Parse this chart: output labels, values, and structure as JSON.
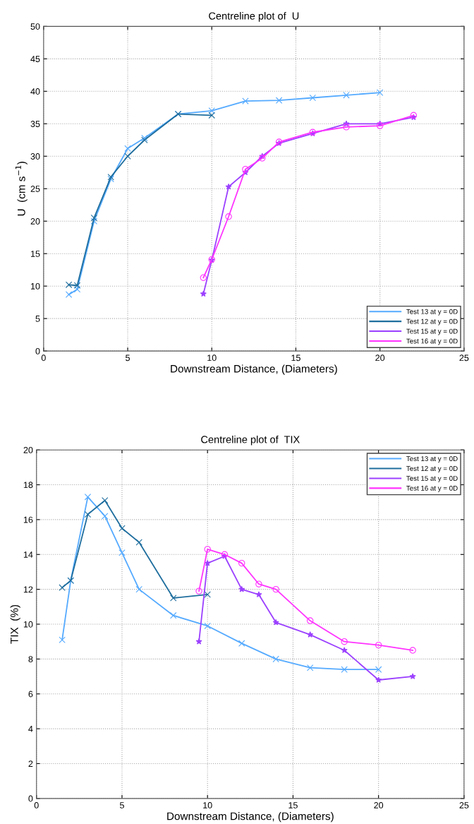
{
  "chart_data": [
    {
      "type": "line",
      "title": "Centreline plot of  U",
      "xlabel": "Downstream Distance, (Diameters)",
      "ylabel": "U  (cm s$^{−1}$)",
      "xlim": [
        0,
        25
      ],
      "xticks": [
        0,
        5,
        10,
        15,
        20,
        25
      ],
      "ylim": [
        0,
        50
      ],
      "yticks": [
        0,
        5,
        10,
        15,
        20,
        25,
        30,
        35,
        40,
        45,
        50
      ],
      "grid": true,
      "legend": "bottom right",
      "line_style": "solid",
      "series": [
        {
          "name": "Test 13 at y = 0D",
          "color": "#55aaff",
          "marker": "cross",
          "x": [
            1.5,
            2,
            3,
            4,
            5,
            6,
            8,
            10,
            12,
            14,
            16,
            18,
            20
          ],
          "values": [
            8.7,
            9.5,
            20,
            26.5,
            31.2,
            32.8,
            36.5,
            37,
            38.5,
            38.6,
            39,
            39.4,
            39.8
          ]
        },
        {
          "name": "Test 12 at y = 0D",
          "color": "#1f6e9e",
          "marker": "cross",
          "x": [
            1.5,
            2,
            3,
            4,
            5,
            6,
            8,
            10
          ],
          "values": [
            10.2,
            10.1,
            20.5,
            26.8,
            30,
            32.5,
            36.5,
            36.3
          ]
        },
        {
          "name": "Test 15 at y = 0D",
          "color": "#9b40ff",
          "marker": "star",
          "x": [
            9.5,
            10,
            11,
            12,
            13,
            14,
            16,
            18,
            20,
            22
          ],
          "values": [
            8.8,
            14,
            25.3,
            27.5,
            30,
            32,
            33.5,
            35,
            35,
            36
          ]
        },
        {
          "name": "Test 16 at y = 0D",
          "color": "#ff33ff",
          "marker": "circle",
          "x": [
            9.5,
            10,
            11,
            12,
            13,
            14,
            16,
            18,
            20,
            22
          ],
          "values": [
            11.3,
            14.1,
            20.7,
            28,
            29.7,
            32.2,
            33.7,
            34.5,
            34.7,
            36.3
          ]
        }
      ]
    },
    {
      "type": "line",
      "title": "Centreline plot of  TIX",
      "xlabel": "Downstream Distance, (Diameters)",
      "ylabel": "TIX  (%)",
      "xlim": [
        0,
        25
      ],
      "xticks": [
        0,
        5,
        10,
        15,
        20,
        25
      ],
      "ylim": [
        0,
        20
      ],
      "yticks": [
        0,
        2,
        4,
        6,
        8,
        10,
        12,
        14,
        16,
        18,
        20
      ],
      "grid": true,
      "legend": "top right",
      "line_style": "solid",
      "series": [
        {
          "name": "Test 13 at y = 0D",
          "color": "#55aaff",
          "marker": "cross",
          "x": [
            1.5,
            2,
            3,
            4,
            5,
            6,
            8,
            10,
            12,
            14,
            16,
            18,
            20
          ],
          "values": [
            9.1,
            12.5,
            17.3,
            16.2,
            14.1,
            12,
            10.5,
            9.9,
            8.9,
            8,
            7.5,
            7.4,
            7.4
          ]
        },
        {
          "name": "Test 12 at y = 0D",
          "color": "#1f6e9e",
          "marker": "cross",
          "x": [
            1.5,
            2,
            3,
            4,
            5,
            6,
            8,
            10
          ],
          "values": [
            12.1,
            12.5,
            16.3,
            17.1,
            15.5,
            14.7,
            11.5,
            11.7
          ]
        },
        {
          "name": "Test 15 at y = 0D",
          "color": "#9b40ff",
          "marker": "star",
          "x": [
            9.5,
            10,
            11,
            12,
            13,
            14,
            16,
            18,
            20,
            22
          ],
          "values": [
            9,
            13.5,
            13.9,
            12,
            11.7,
            10.1,
            9.4,
            8.5,
            6.8,
            7
          ]
        },
        {
          "name": "Test 16 at y = 0D",
          "color": "#ff33ff",
          "marker": "circle",
          "x": [
            9.5,
            10,
            11,
            12,
            13,
            14,
            16,
            18,
            20,
            22
          ],
          "values": [
            11.9,
            14.3,
            14,
            13.5,
            12.3,
            12,
            10.2,
            9,
            8.8,
            8.5
          ]
        }
      ]
    }
  ]
}
